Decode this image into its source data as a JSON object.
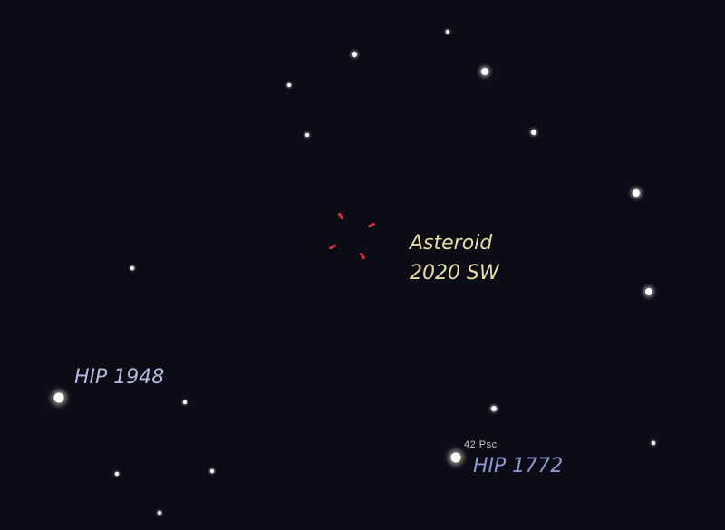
{
  "sky_chart": {
    "background_color": "#0b0c16",
    "target": {
      "name_line1": "Asteroid",
      "name_line2": "2020 SW",
      "label_color": "#e7dca0",
      "marker_color": "#e0343a"
    },
    "star_labels": [
      {
        "text": "HIP 1948",
        "color": "#b7b6dc"
      },
      {
        "text": "HIP 1772",
        "color": "#8a96cf"
      },
      {
        "text": "42 Psc",
        "color": "#c8c8cc"
      }
    ]
  }
}
